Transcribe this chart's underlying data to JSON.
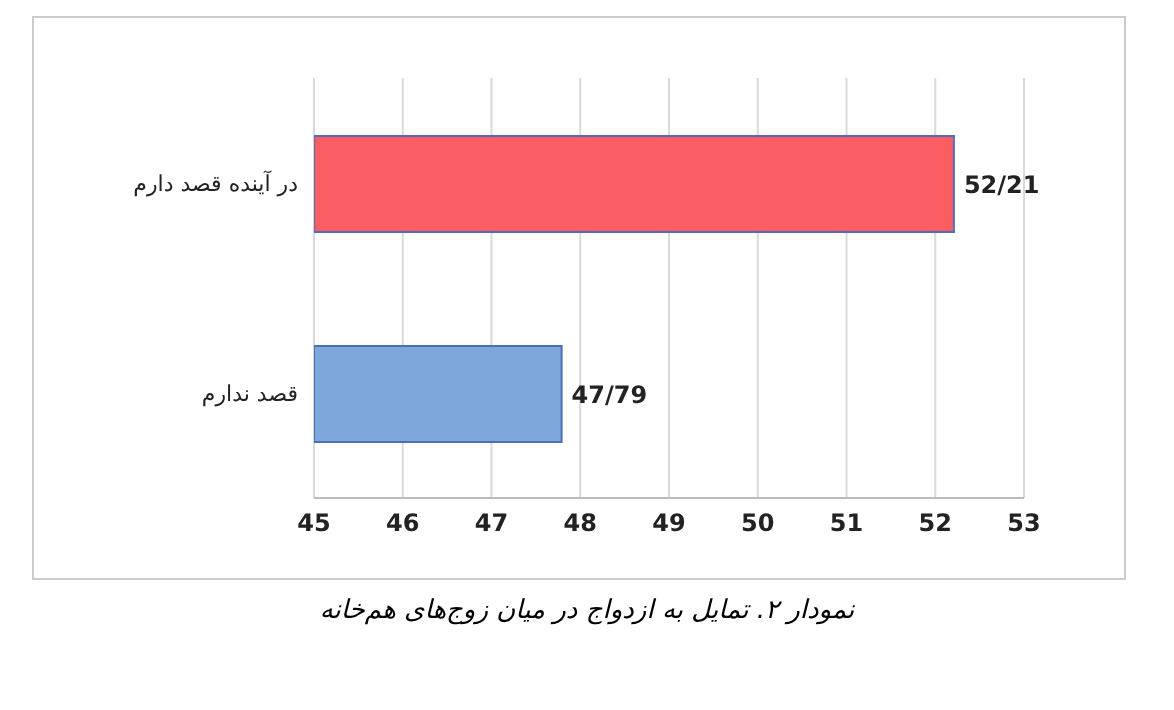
{
  "chart_data": {
    "type": "bar",
    "orientation": "horizontal",
    "categories": [
      "در آینده قصد دارم",
      "قصد ندارم"
    ],
    "values": [
      52.21,
      47.79
    ],
    "colors": [
      "#fb5d63",
      "#7ea8dc"
    ],
    "value_labels": [
      "52/21",
      "47/79"
    ],
    "xlim": [
      45,
      53
    ],
    "xticks": [
      45,
      46,
      47,
      48,
      49,
      50,
      51,
      52,
      53
    ],
    "grid": "x",
    "annotations": [
      "نمودار ۲. تمایل به ازدواج در میان زوج‌های هم‌خانه"
    ]
  }
}
